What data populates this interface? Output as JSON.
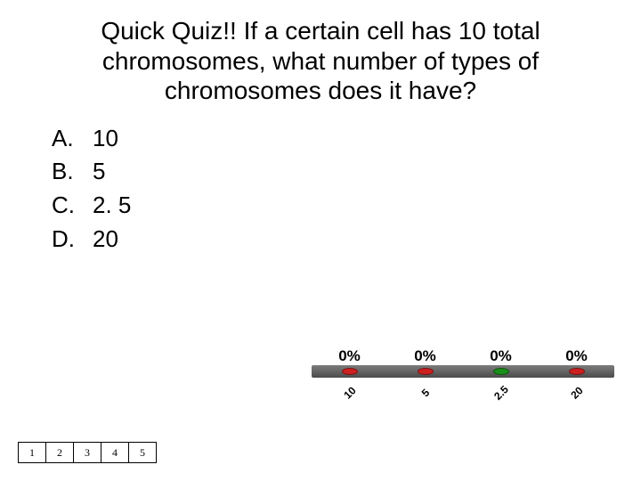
{
  "question": "Quick Quiz!!  If a certain cell has 10 total chromosomes, what number of types of chromosomes does it have?",
  "answers": [
    {
      "letter": "A.",
      "text": "10"
    },
    {
      "letter": "B.",
      "text": "5"
    },
    {
      "letter": "C.",
      "text": "2. 5"
    },
    {
      "letter": "D.",
      "text": "20"
    }
  ],
  "chart": {
    "type": "bar",
    "percent_label": "0%",
    "categories": [
      "10",
      "5",
      "2.5",
      "20"
    ],
    "values": [
      0,
      0,
      0,
      0
    ],
    "marker_colors": [
      "#cc2020",
      "#cc2020",
      "#1a8f1a",
      "#cc2020"
    ],
    "platform_gradient": [
      "#7a7a7a",
      "#4a4a4a"
    ],
    "percent_fontsize": 17,
    "category_fontsize": 12,
    "category_rotation": -45,
    "background_color": "#ffffff"
  },
  "countdown": {
    "boxes": [
      "1",
      "2",
      "3",
      "4",
      "5"
    ]
  }
}
